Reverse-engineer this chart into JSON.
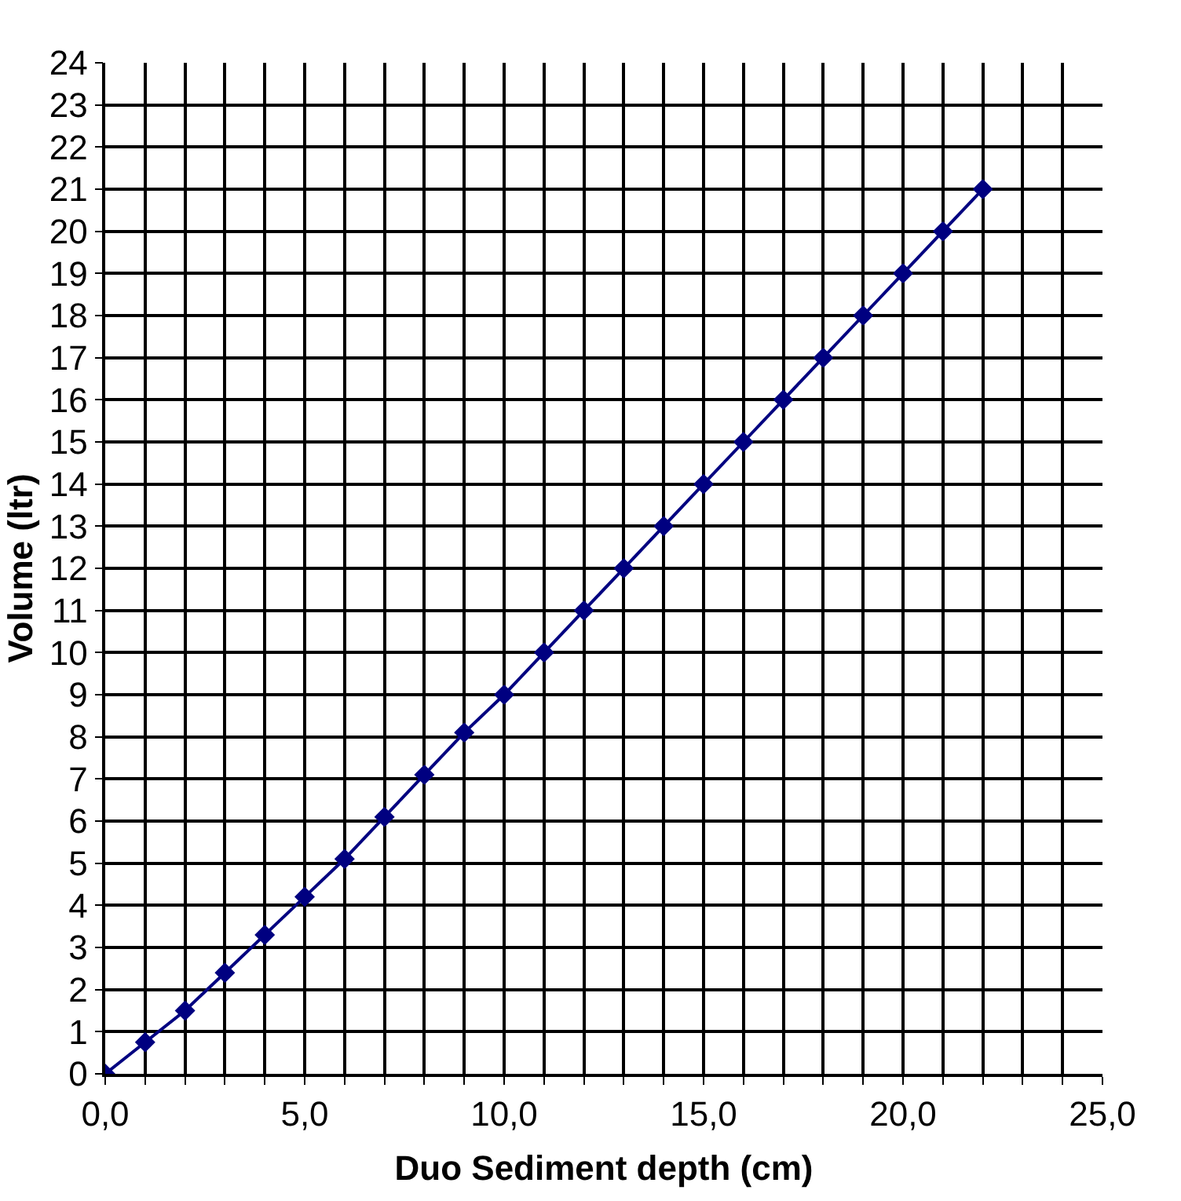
{
  "chart_data": {
    "type": "line",
    "xlabel": "Duo Sediment depth (cm)",
    "ylabel": "Volume (ltr)",
    "x": [
      0,
      1,
      2,
      3,
      4,
      5,
      6,
      7,
      8,
      9,
      10,
      11,
      12,
      13,
      14,
      15,
      16,
      17,
      18,
      19,
      20,
      21,
      22
    ],
    "series": [
      {
        "color": "#000080",
        "values": [
          0,
          0.75,
          1.5,
          2.4,
          3.3,
          4.2,
          5.1,
          6.1,
          7.1,
          8.1,
          9,
          10,
          11,
          12,
          13,
          14,
          15,
          16,
          17,
          18,
          19,
          20,
          21
        ]
      }
    ],
    "xlim": [
      0,
      25
    ],
    "xticks": [
      {
        "value": 0,
        "label": "0,0"
      },
      {
        "value": 1,
        "label": null
      },
      {
        "value": 2,
        "label": null
      },
      {
        "value": 3,
        "label": null
      },
      {
        "value": 4,
        "label": null
      },
      {
        "value": 5,
        "label": "5,0"
      },
      {
        "value": 6,
        "label": null
      },
      {
        "value": 7,
        "label": null
      },
      {
        "value": 8,
        "label": null
      },
      {
        "value": 9,
        "label": null
      },
      {
        "value": 10,
        "label": "10,0"
      },
      {
        "value": 11,
        "label": null
      },
      {
        "value": 12,
        "label": null
      },
      {
        "value": 13,
        "label": null
      },
      {
        "value": 14,
        "label": null
      },
      {
        "value": 15,
        "label": "15,0"
      },
      {
        "value": 16,
        "label": null
      },
      {
        "value": 17,
        "label": null
      },
      {
        "value": 18,
        "label": null
      },
      {
        "value": 19,
        "label": null
      },
      {
        "value": 20,
        "label": "20,0"
      },
      {
        "value": 21,
        "label": null
      },
      {
        "value": 22,
        "label": null
      },
      {
        "value": 23,
        "label": null
      },
      {
        "value": 24,
        "label": null
      },
      {
        "value": 25,
        "label": "25,0"
      }
    ],
    "ylim": [
      0,
      24
    ],
    "yticks": [
      0,
      1,
      2,
      3,
      4,
      5,
      6,
      7,
      8,
      9,
      10,
      11,
      12,
      13,
      14,
      15,
      16,
      17,
      18,
      19,
      20,
      21,
      22,
      23,
      24
    ],
    "grid": true,
    "marker": "diamond",
    "line_style": "solid"
  }
}
